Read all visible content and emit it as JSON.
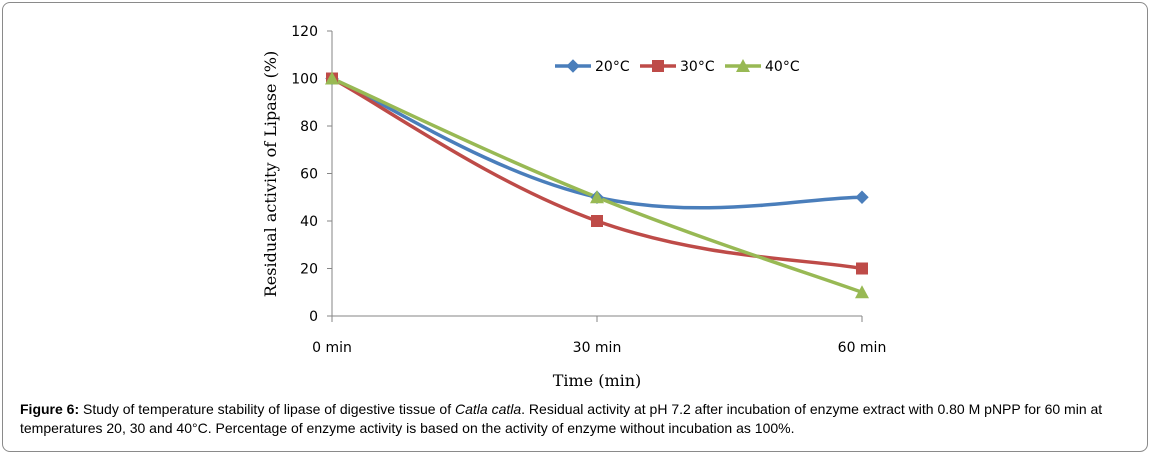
{
  "chart_data": {
    "type": "line",
    "categories": [
      "0 min",
      "30 min",
      "60 min"
    ],
    "series": [
      {
        "name": "20°C",
        "values": [
          100,
          50,
          50
        ],
        "color": "#4A7EBB",
        "marker": "diamond"
      },
      {
        "name": "30°C",
        "values": [
          100,
          40,
          20
        ],
        "color": "#BE4B48",
        "marker": "square"
      },
      {
        "name": "40°C",
        "values": [
          100,
          50,
          10
        ],
        "color": "#98B954",
        "marker": "triangle"
      }
    ],
    "xlabel": "Time (min)",
    "ylabel": "Residual activity of Lipase (%)",
    "ylim": [
      0,
      120
    ],
    "yticks": [
      "0",
      "20",
      "40",
      "60",
      "80",
      "100",
      "120"
    ],
    "grid": false,
    "legend_position": "top-center"
  },
  "caption": {
    "label": "Figure 6:",
    "text_before_italic": " Study of temperature stability of lipase of digestive tissue of ",
    "italic": "Catla catla",
    "text_after_italic": ". Residual activity at pH 7.2 after incubation of enzyme extract with 0.80 M pNPP for 60 min at temperatures 20, 30 and 40°C. Percentage of enzyme activity is based on the activity of enzyme without incubation as 100%."
  }
}
